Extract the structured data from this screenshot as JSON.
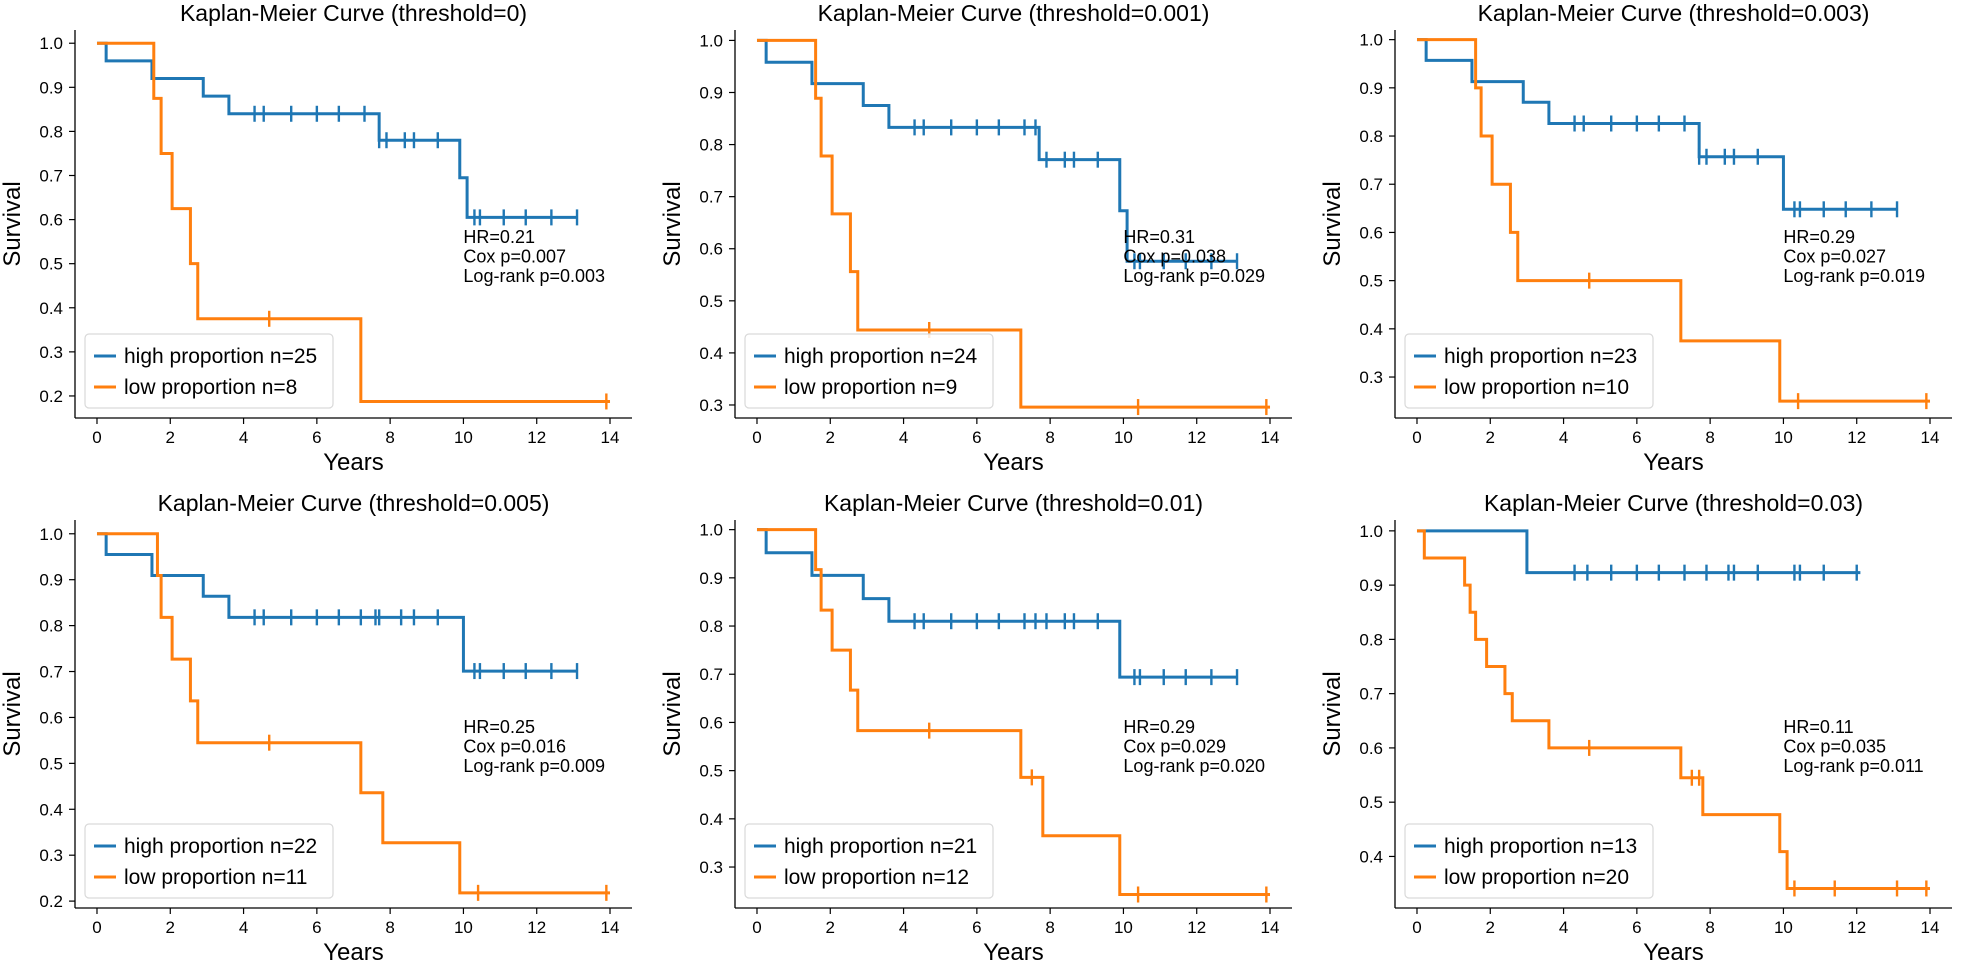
{
  "figure": {
    "width": 1961,
    "height": 976
  },
  "colors": {
    "high": "#1f77b4",
    "low": "#ff7f0e",
    "axis": "#000000",
    "legend_border": "#d9d9d9"
  },
  "chart_data": [
    {
      "type": "line",
      "title": "Kaplan-Meier Curve (threshold=0)",
      "xlabel": "Years",
      "ylabel": "Survival",
      "xlim": [
        -0.6,
        14.6
      ],
      "ylim": [
        0.15,
        1.03
      ],
      "xticks": [
        0,
        2,
        4,
        6,
        8,
        10,
        12,
        14
      ],
      "yticks": [
        0.2,
        0.3,
        0.4,
        0.5,
        0.6,
        0.7,
        0.8,
        0.9,
        1.0
      ],
      "grid": false,
      "legend_position": "lower-left",
      "stats": [
        "HR=0.21",
        "Cox p=0.007",
        "Log-rank p=0.003"
      ],
      "series": [
        {
          "name": "high proportion n=25",
          "color": "high",
          "steps": [
            [
              0,
              1.0
            ],
            [
              0.25,
              0.96
            ],
            [
              1.5,
              0.92
            ],
            [
              2.9,
              0.88
            ],
            [
              3.6,
              0.84
            ],
            [
              7.7,
              0.78
            ],
            [
              9.9,
              0.695
            ],
            [
              10.1,
              0.605
            ]
          ],
          "end": 13.1,
          "censors": [
            4.3,
            4.55,
            5.3,
            6.0,
            6.6,
            7.3,
            7.7,
            7.9,
            8.4,
            8.65,
            9.3,
            10.3,
            10.45,
            11.1,
            11.7,
            12.4,
            13.1
          ]
        },
        {
          "name": "low proportion n=8",
          "color": "low",
          "steps": [
            [
              0,
              1.0
            ],
            [
              1.55,
              0.875
            ],
            [
              1.75,
              0.75
            ],
            [
              2.05,
              0.625
            ],
            [
              2.55,
              0.5
            ],
            [
              2.75,
              0.375
            ],
            [
              7.2,
              0.1875
            ]
          ],
          "end": 14.0,
          "censors": [
            4.7,
            13.9
          ]
        }
      ]
    },
    {
      "type": "line",
      "title": "Kaplan-Meier Curve (threshold=0.001)",
      "xlabel": "Years",
      "ylabel": "Survival",
      "xlim": [
        -0.6,
        14.6
      ],
      "ylim": [
        0.275,
        1.02
      ],
      "xticks": [
        0,
        2,
        4,
        6,
        8,
        10,
        12,
        14
      ],
      "yticks": [
        0.3,
        0.4,
        0.5,
        0.6,
        0.7,
        0.8,
        0.9,
        1.0
      ],
      "grid": false,
      "legend_position": "lower-left",
      "stats": [
        "HR=0.31",
        "Cox p=0.038",
        "Log-rank p=0.029"
      ],
      "series": [
        {
          "name": "high proportion n=24",
          "color": "high",
          "steps": [
            [
              0,
              1.0
            ],
            [
              0.25,
              0.958
            ],
            [
              1.5,
              0.917
            ],
            [
              2.9,
              0.875
            ],
            [
              3.6,
              0.833
            ],
            [
              7.7,
              0.771
            ],
            [
              9.9,
              0.673
            ],
            [
              10.1,
              0.576
            ]
          ],
          "end": 13.1,
          "censors": [
            4.3,
            4.55,
            5.3,
            6.0,
            6.6,
            7.3,
            7.6,
            7.9,
            8.4,
            8.65,
            9.3,
            10.3,
            10.45,
            11.1,
            11.7,
            12.4,
            13.1
          ]
        },
        {
          "name": "low proportion n=9",
          "color": "low",
          "steps": [
            [
              0,
              1.0
            ],
            [
              1.6,
              0.889
            ],
            [
              1.75,
              0.778
            ],
            [
              2.05,
              0.667
            ],
            [
              2.55,
              0.556
            ],
            [
              2.75,
              0.444
            ],
            [
              7.2,
              0.296
            ]
          ],
          "end": 14.0,
          "censors": [
            4.7,
            10.4,
            13.9
          ]
        }
      ]
    },
    {
      "type": "line",
      "title": "Kaplan-Meier Curve (threshold=0.003)",
      "xlabel": "Years",
      "ylabel": "Survival",
      "xlim": [
        -0.6,
        14.6
      ],
      "ylim": [
        0.215,
        1.02
      ],
      "xticks": [
        0,
        2,
        4,
        6,
        8,
        10,
        12,
        14
      ],
      "yticks": [
        0.3,
        0.4,
        0.5,
        0.6,
        0.7,
        0.8,
        0.9,
        1.0
      ],
      "grid": false,
      "legend_position": "lower-left",
      "stats": [
        "HR=0.29",
        "Cox p=0.027",
        "Log-rank p=0.019"
      ],
      "series": [
        {
          "name": "high proportion n=23",
          "color": "high",
          "steps": [
            [
              0,
              1.0
            ],
            [
              0.25,
              0.957
            ],
            [
              1.5,
              0.913
            ],
            [
              2.9,
              0.87
            ],
            [
              3.6,
              0.826
            ],
            [
              7.7,
              0.757
            ],
            [
              10.0,
              0.648
            ]
          ],
          "end": 13.1,
          "censors": [
            4.3,
            4.55,
            5.3,
            6.0,
            6.6,
            7.3,
            7.7,
            7.9,
            8.4,
            8.65,
            9.3,
            10.3,
            10.45,
            11.1,
            11.7,
            12.4,
            13.1
          ]
        },
        {
          "name": "low proportion n=10",
          "color": "low",
          "steps": [
            [
              0,
              1.0
            ],
            [
              1.6,
              0.9
            ],
            [
              1.75,
              0.8
            ],
            [
              2.05,
              0.7
            ],
            [
              2.55,
              0.6
            ],
            [
              2.75,
              0.5
            ],
            [
              7.2,
              0.375
            ],
            [
              9.9,
              0.25
            ]
          ],
          "end": 14.0,
          "censors": [
            4.7,
            10.4,
            13.9
          ]
        }
      ]
    },
    {
      "type": "line",
      "title": "Kaplan-Meier Curve (threshold=0.005)",
      "xlabel": "Years",
      "ylabel": "Survival",
      "xlim": [
        -0.6,
        14.6
      ],
      "ylim": [
        0.185,
        1.03
      ],
      "xticks": [
        0,
        2,
        4,
        6,
        8,
        10,
        12,
        14
      ],
      "yticks": [
        0.2,
        0.3,
        0.4,
        0.5,
        0.6,
        0.7,
        0.8,
        0.9,
        1.0
      ],
      "grid": false,
      "legend_position": "lower-left",
      "stats": [
        "HR=0.25",
        "Cox p=0.016",
        "Log-rank p=0.009"
      ],
      "series": [
        {
          "name": "high proportion n=22",
          "color": "high",
          "steps": [
            [
              0,
              1.0
            ],
            [
              0.25,
              0.955
            ],
            [
              1.5,
              0.909
            ],
            [
              2.9,
              0.864
            ],
            [
              3.6,
              0.818
            ],
            [
              10.0,
              0.701
            ]
          ],
          "end": 13.1,
          "censors": [
            4.3,
            4.55,
            5.3,
            6.0,
            6.6,
            7.2,
            7.6,
            7.7,
            8.3,
            8.65,
            9.3,
            10.3,
            10.45,
            11.1,
            11.7,
            12.4,
            13.1
          ]
        },
        {
          "name": "low proportion n=11",
          "color": "low",
          "steps": [
            [
              0,
              1.0
            ],
            [
              1.65,
              0.909
            ],
            [
              1.75,
              0.818
            ],
            [
              2.05,
              0.727
            ],
            [
              2.55,
              0.636
            ],
            [
              2.75,
              0.545
            ],
            [
              7.2,
              0.436
            ],
            [
              7.8,
              0.327
            ],
            [
              9.9,
              0.218
            ]
          ],
          "end": 14.0,
          "censors": [
            4.7,
            10.4,
            13.9
          ]
        }
      ]
    },
    {
      "type": "line",
      "title": "Kaplan-Meier Curve (threshold=0.01)",
      "xlabel": "Years",
      "ylabel": "Survival",
      "xlim": [
        -0.6,
        14.6
      ],
      "ylim": [
        0.215,
        1.02
      ],
      "xticks": [
        0,
        2,
        4,
        6,
        8,
        10,
        12,
        14
      ],
      "yticks": [
        0.3,
        0.4,
        0.5,
        0.6,
        0.7,
        0.8,
        0.9,
        1.0
      ],
      "grid": false,
      "legend_position": "lower-left",
      "stats": [
        "HR=0.29",
        "Cox p=0.029",
        "Log-rank p=0.020"
      ],
      "series": [
        {
          "name": "high proportion n=21",
          "color": "high",
          "steps": [
            [
              0,
              1.0
            ],
            [
              0.25,
              0.952
            ],
            [
              1.5,
              0.905
            ],
            [
              2.9,
              0.857
            ],
            [
              3.6,
              0.81
            ],
            [
              9.9,
              0.694
            ]
          ],
          "end": 13.1,
          "censors": [
            4.3,
            4.55,
            5.3,
            6.0,
            6.6,
            7.3,
            7.6,
            7.9,
            8.4,
            8.65,
            9.3,
            10.3,
            10.45,
            11.1,
            11.7,
            12.4,
            13.1
          ]
        },
        {
          "name": "low proportion n=12",
          "color": "low",
          "steps": [
            [
              0,
              1.0
            ],
            [
              1.6,
              0.917
            ],
            [
              1.75,
              0.833
            ],
            [
              2.05,
              0.75
            ],
            [
              2.55,
              0.667
            ],
            [
              2.75,
              0.583
            ],
            [
              7.2,
              0.486
            ],
            [
              7.8,
              0.365
            ],
            [
              9.9,
              0.243
            ]
          ],
          "end": 14.0,
          "censors": [
            4.7,
            7.5,
            10.4,
            13.9
          ]
        }
      ]
    },
    {
      "type": "line",
      "title": "Kaplan-Meier Curve (threshold=0.03)",
      "xlabel": "Years",
      "ylabel": "Survival",
      "xlim": [
        -0.6,
        14.6
      ],
      "ylim": [
        0.305,
        1.02
      ],
      "xticks": [
        0,
        2,
        4,
        6,
        8,
        10,
        12,
        14
      ],
      "yticks": [
        0.4,
        0.5,
        0.6,
        0.7,
        0.8,
        0.9,
        1.0
      ],
      "grid": false,
      "legend_position": "lower-left",
      "stats": [
        "HR=0.11",
        "Cox p=0.035",
        "Log-rank p=0.011"
      ],
      "series": [
        {
          "name": "high proportion n=13",
          "color": "high",
          "steps": [
            [
              0,
              1.0
            ],
            [
              3.0,
              0.923
            ]
          ],
          "end": 12.1,
          "censors": [
            4.3,
            4.65,
            5.3,
            6.0,
            6.6,
            7.3,
            7.9,
            8.5,
            8.65,
            9.3,
            10.3,
            10.45,
            11.1,
            12.0
          ]
        },
        {
          "name": "low proportion n=20",
          "color": "low",
          "steps": [
            [
              0,
              1.0
            ],
            [
              0.2,
              0.95
            ],
            [
              1.3,
              0.9
            ],
            [
              1.45,
              0.85
            ],
            [
              1.6,
              0.8
            ],
            [
              1.9,
              0.75
            ],
            [
              2.4,
              0.7
            ],
            [
              2.6,
              0.65
            ],
            [
              3.6,
              0.6
            ],
            [
              7.2,
              0.545
            ],
            [
              7.8,
              0.477
            ],
            [
              9.9,
              0.409
            ],
            [
              10.1,
              0.341
            ]
          ],
          "end": 14.0,
          "censors": [
            4.7,
            7.5,
            7.7,
            10.3,
            11.4,
            13.1,
            13.9
          ]
        }
      ]
    }
  ]
}
